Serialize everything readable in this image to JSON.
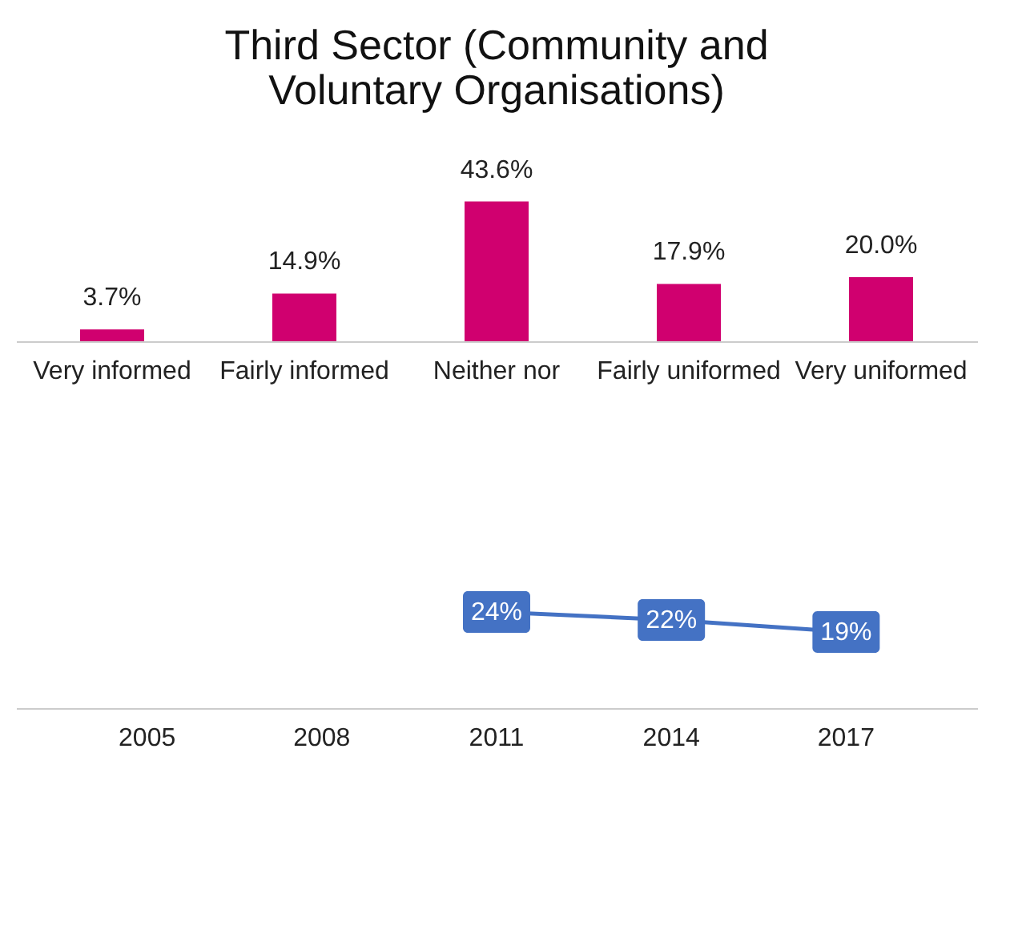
{
  "chart_data": [
    {
      "type": "bar",
      "title": "Third Sector (Community and Voluntary Organisations)",
      "categories": [
        "Very informed",
        "Fairly informed",
        "Neither nor",
        "Fairly uniformed",
        "Very uniformed"
      ],
      "values": [
        3.7,
        14.9,
        43.6,
        17.9,
        20.0
      ],
      "value_labels": [
        "3.7%",
        "14.9%",
        "43.6%",
        "17.9%",
        "20.0%"
      ],
      "color": "#d0006f",
      "tick_labels": "x",
      "grid": false
    },
    {
      "type": "line",
      "categories": [
        "2005",
        "2008",
        "2011",
        "2014",
        "2017"
      ],
      "series": [
        {
          "color": "#4472c4",
          "values": [
            null,
            null,
            24,
            22,
            19
          ],
          "value_labels": [
            null,
            null,
            "24%",
            "22%",
            "19%"
          ]
        }
      ],
      "tick_labels": "x",
      "grid": false,
      "marker": "square",
      "line_style": "solid"
    }
  ]
}
